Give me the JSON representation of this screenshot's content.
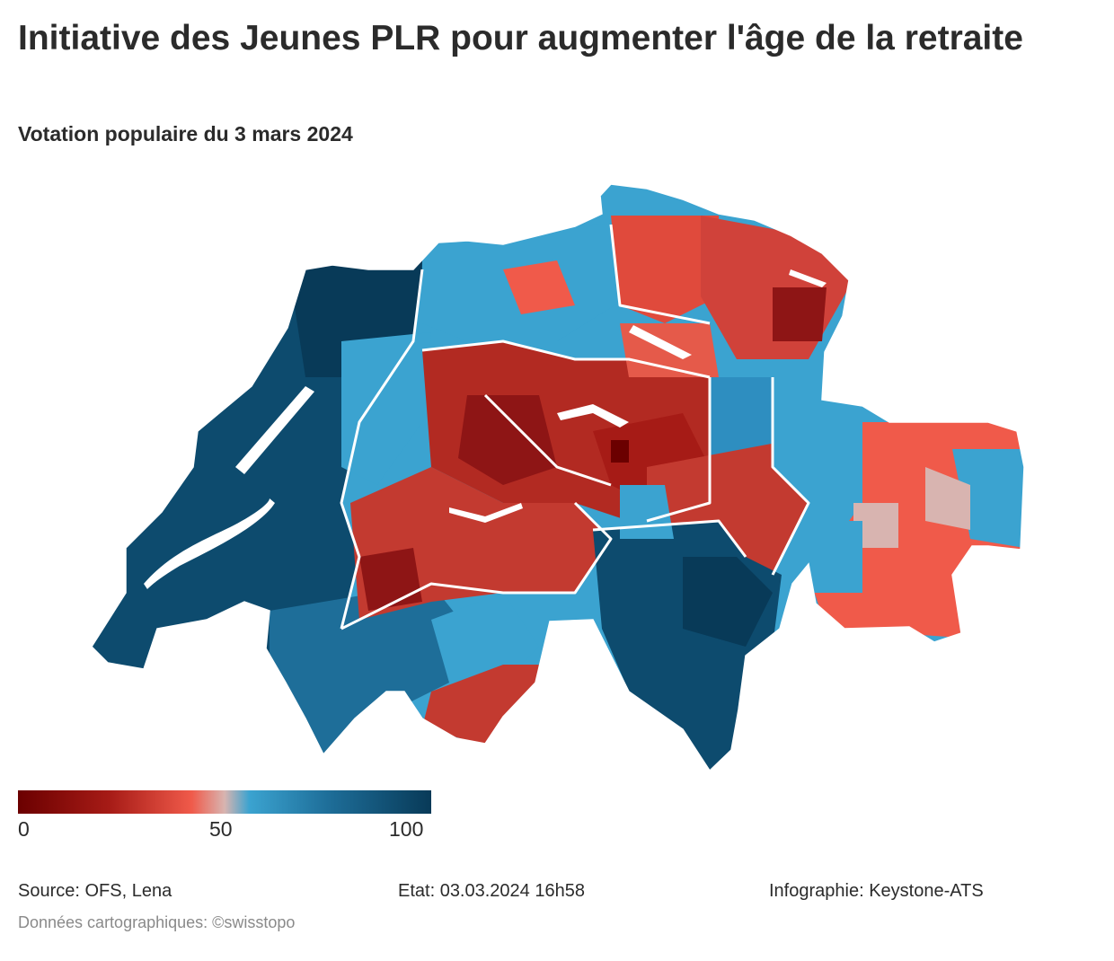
{
  "header": {
    "title": "Initiative des Jeunes PLR pour augmenter l'âge de la retraite",
    "subtitle": "Votation populaire du 3 mars 2024"
  },
  "legend": {
    "min_label": "0",
    "mid_label": "50",
    "max_label": "100",
    "colors": [
      "#6b0000",
      "#a61b16",
      "#f05a4a",
      "#d8b4b0",
      "#3ba3d0",
      "#1e6e99",
      "#083a58"
    ]
  },
  "map": {
    "region": "Suisse",
    "unit_level": "communes",
    "color_scale": "diverging red–blue, 0 to 100"
  },
  "footer": {
    "source": "Source: OFS, Lena",
    "state": "Etat: 03.03.2024 16h58",
    "credit": "Infographie: Keystone-ATS",
    "map_data": "Données cartographiques: ©swisstopo"
  }
}
